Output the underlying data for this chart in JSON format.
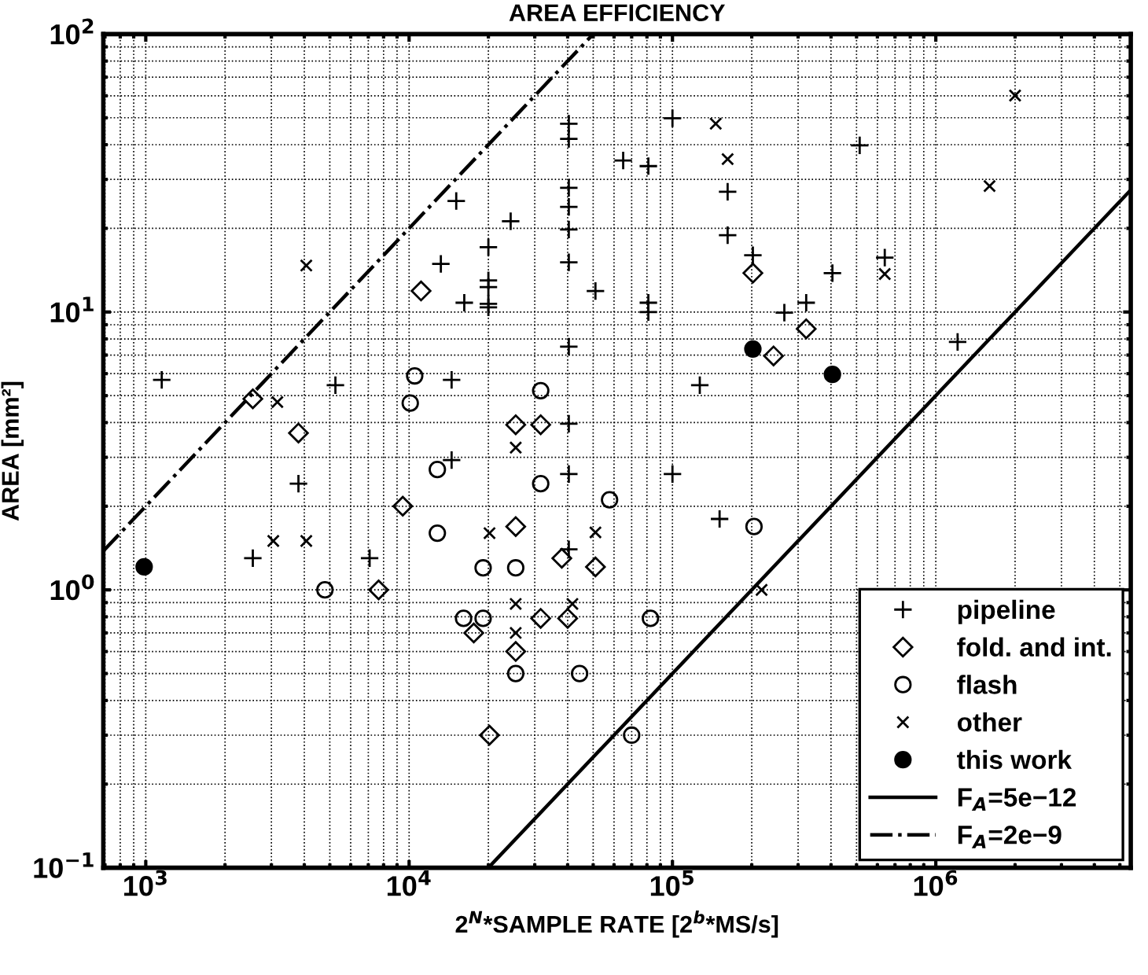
{
  "chart_data": {
    "type": "scatter",
    "title": "AREA EFFICIENCY",
    "xlabel": "2$^{N}$*SAMPLE RATE [2$^{b}$*MS/s]",
    "ylabel": "AREA [mm²]",
    "log": "xy",
    "grid": true,
    "legend": "bottom right",
    "xlim": [
      690,
      5500000
    ],
    "ylim": [
      0.1,
      100
    ],
    "xticks": [
      {
        "value": 1000,
        "label": "10$^{3}$"
      },
      {
        "value": 10000,
        "label": "10$^{4}$"
      },
      {
        "value": 100000,
        "label": "10$^{5}$"
      },
      {
        "value": 1000000,
        "label": "10$^{6}$"
      }
    ],
    "yticks": [
      {
        "value": 0.1,
        "label": "10$^{−1}$"
      },
      {
        "value": 1,
        "label": "10$^{0}$"
      },
      {
        "value": 10,
        "label": "10$^{1}$"
      },
      {
        "value": 100,
        "label": "10$^{2}$"
      }
    ],
    "series": [
      {
        "name": "pipeline",
        "marker": "plus",
        "color": "#000000",
        "x": [
          1150,
          15100,
          24300,
          20000,
          13200,
          20000,
          20000,
          20000,
          20000,
          16200,
          5250,
          14500,
          40400,
          40400,
          40400,
          40400,
          40400,
          40400,
          40400,
          40400,
          100000,
          65000,
          81000,
          162000,
          162000,
          202000,
          405000,
          640000,
          51000,
          81000,
          81000,
          266000,
          322000,
          514000,
          1210000,
          127000,
          14500,
          3800,
          40400,
          2550,
          7080,
          40400,
          100000,
          151000
        ],
        "values": [
          5.7,
          25.1,
          21.2,
          17.1,
          14.9,
          13.0,
          12.3,
          10.7,
          10.4,
          10.8,
          5.45,
          5.7,
          3.96,
          47.6,
          42.0,
          28.0,
          23.9,
          19.8,
          15.1,
          7.5,
          49.8,
          35.1,
          33.5,
          27.1,
          18.9,
          16.0,
          13.8,
          15.7,
          11.9,
          10.8,
          10.0,
          9.95,
          10.8,
          39.8,
          7.8,
          5.45,
          2.93,
          2.41,
          2.61,
          1.3,
          1.3,
          1.4,
          2.61,
          1.8
        ]
      },
      {
        "name": "fold. and int.",
        "marker": "diamond",
        "color": "#000000",
        "x": [
          2550,
          3800,
          11100,
          25400,
          31600,
          202000,
          322000,
          242000,
          9460,
          7660,
          25400,
          38000,
          17600,
          31600,
          40000,
          25400,
          20200,
          51000
        ],
        "values": [
          4.87,
          3.67,
          11.9,
          3.93,
          3.93,
          13.8,
          8.7,
          6.95,
          2.0,
          1.0,
          1.69,
          1.3,
          0.7,
          0.79,
          0.79,
          0.6,
          0.3,
          1.21
        ]
      },
      {
        "name": "flash",
        "marker": "circle",
        "color": "#000000",
        "x": [
          10500,
          10100,
          31600,
          12800,
          31600,
          12800,
          4790,
          19100,
          25400,
          16100,
          19100,
          25400,
          44400,
          57700,
          204000,
          82500,
          70000
        ],
        "values": [
          5.89,
          4.7,
          5.21,
          2.71,
          2.41,
          1.6,
          1.0,
          1.2,
          1.2,
          0.79,
          0.79,
          0.5,
          0.5,
          2.11,
          1.69,
          0.79,
          0.3
        ]
      },
      {
        "name": "other",
        "marker": "cross",
        "color": "#000000",
        "x": [
          4070,
          3160,
          25400,
          146000,
          162000,
          2000000,
          1600000,
          640000,
          3050,
          4070,
          20200,
          25400,
          25400,
          41700,
          51000,
          218000
        ],
        "values": [
          14.7,
          4.74,
          3.25,
          47.6,
          35.5,
          60.1,
          28.4,
          13.7,
          1.5,
          1.5,
          1.6,
          0.89,
          0.7,
          0.89,
          1.61,
          1.0
        ]
      },
      {
        "name": "this work",
        "marker": "dot",
        "color": "#000000",
        "x": [
          986,
          202000,
          405000
        ],
        "values": [
          1.21,
          7.36,
          5.96
        ]
      },
      {
        "name": "F$_{A}$=5e−12",
        "type": "line",
        "line_style": "solid",
        "color": "#000000",
        "x": [
          20000,
          5500000
        ],
        "values": [
          0.1,
          27.5
        ]
      },
      {
        "name": "F$_{A}$=2e−9",
        "type": "line",
        "line_style": "dashdot",
        "color": "#000000",
        "x": [
          690,
          50000
        ],
        "values": [
          1.38,
          100
        ]
      }
    ]
  }
}
